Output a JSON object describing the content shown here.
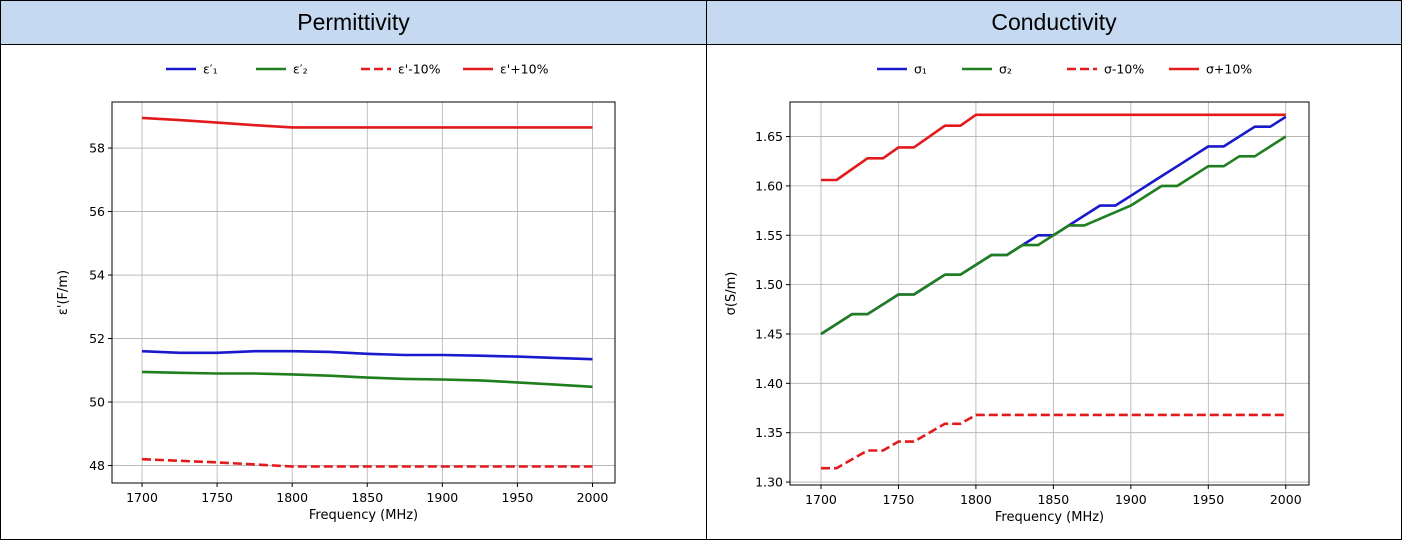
{
  "headers": {
    "left": "Permittivity",
    "right": "Conductivity"
  },
  "colors": {
    "blue": "#1a1acc",
    "green": "#1f7f1f",
    "red": "#e31a1c",
    "grid": "#b0b0b0",
    "header_bg": "#c5d9f1"
  },
  "chart_data": [
    {
      "type": "line",
      "xlabel": "Frequency (MHz)",
      "ylabel": "ε'(F/m)",
      "xlim": [
        1680,
        2015
      ],
      "ylim": [
        47.45,
        59.45
      ],
      "xticks": [
        1700,
        1750,
        1800,
        1850,
        1900,
        1950,
        2000
      ],
      "yticks": [
        48,
        50,
        52,
        54,
        56,
        58
      ],
      "ytick_labels": [
        "48",
        "50",
        "52",
        "54",
        "56",
        "58"
      ],
      "grid": true,
      "legend": "top-center, outside",
      "series": [
        {
          "name": "ε′₁",
          "color": "blue",
          "dashed": false,
          "x": [
            1700,
            1725,
            1750,
            1775,
            1800,
            1825,
            1850,
            1875,
            1900,
            1925,
            1950,
            1975,
            2000
          ],
          "y": [
            51.6,
            51.55,
            51.55,
            51.6,
            51.6,
            51.58,
            51.52,
            51.48,
            51.48,
            51.46,
            51.43,
            51.39,
            51.35
          ]
        },
        {
          "name": "ε′₂",
          "color": "green",
          "dashed": false,
          "x": [
            1700,
            1725,
            1750,
            1775,
            1800,
            1825,
            1850,
            1875,
            1900,
            1925,
            1950,
            1975,
            2000
          ],
          "y": [
            50.95,
            50.92,
            50.9,
            50.9,
            50.87,
            50.83,
            50.77,
            50.73,
            50.71,
            50.68,
            50.62,
            50.55,
            50.48
          ]
        },
        {
          "name": "ε'-10%",
          "color": "red",
          "dashed": true,
          "x": [
            1700,
            1750,
            1800,
            1850,
            1900,
            1950,
            2000
          ],
          "y": [
            48.2,
            48.1,
            47.97,
            47.97,
            47.97,
            47.97,
            47.97
          ]
        },
        {
          "name": "ε'+10%",
          "color": "red",
          "dashed": false,
          "x": [
            1700,
            1725,
            1750,
            1775,
            1800,
            1850,
            1900,
            1950,
            2000
          ],
          "y": [
            58.95,
            58.88,
            58.8,
            58.72,
            58.65,
            58.65,
            58.65,
            58.65,
            58.65
          ]
        }
      ]
    },
    {
      "type": "line",
      "xlabel": "Frequency (MHz)",
      "ylabel": "σ(S/m)",
      "xlim": [
        1680,
        2015
      ],
      "ylim": [
        1.297,
        1.685
      ],
      "xticks": [
        1700,
        1750,
        1800,
        1850,
        1900,
        1950,
        2000
      ],
      "yticks": [
        1.3,
        1.35,
        1.4,
        1.45,
        1.5,
        1.55,
        1.6,
        1.65
      ],
      "ytick_labels": [
        "1.30",
        "1.35",
        "1.40",
        "1.45",
        "1.50",
        "1.55",
        "1.60",
        "1.65"
      ],
      "grid": true,
      "legend": "top-center, outside",
      "series": [
        {
          "name": "σ₁",
          "color": "blue",
          "dashed": false,
          "x": [
            1700,
            1720,
            1730,
            1750,
            1760,
            1780,
            1790,
            1810,
            1820,
            1840,
            1850,
            1870,
            1880,
            1890,
            1900,
            1910,
            1920,
            1930,
            1940,
            1950,
            1960,
            1980,
            1990,
            2000
          ],
          "y": [
            1.45,
            1.47,
            1.47,
            1.49,
            1.49,
            1.51,
            1.51,
            1.53,
            1.53,
            1.55,
            1.55,
            1.57,
            1.58,
            1.58,
            1.59,
            1.6,
            1.61,
            1.62,
            1.63,
            1.64,
            1.64,
            1.66,
            1.66,
            1.67
          ]
        },
        {
          "name": "σ₂",
          "color": "green",
          "dashed": false,
          "x": [
            1700,
            1720,
            1730,
            1750,
            1760,
            1780,
            1790,
            1810,
            1820,
            1830,
            1840,
            1860,
            1870,
            1900,
            1920,
            1930,
            1950,
            1960,
            1970,
            1980,
            2000
          ],
          "y": [
            1.45,
            1.47,
            1.47,
            1.49,
            1.49,
            1.51,
            1.51,
            1.53,
            1.53,
            1.54,
            1.54,
            1.56,
            1.56,
            1.58,
            1.6,
            1.6,
            1.62,
            1.62,
            1.63,
            1.63,
            1.65
          ]
        },
        {
          "name": "σ-10%",
          "color": "red",
          "dashed": true,
          "x": [
            1700,
            1710,
            1730,
            1740,
            1750,
            1760,
            1780,
            1790,
            1800,
            1850,
            1900,
            1950,
            2000
          ],
          "y": [
            1.314,
            1.314,
            1.332,
            1.332,
            1.341,
            1.341,
            1.359,
            1.359,
            1.368,
            1.368,
            1.368,
            1.368,
            1.368
          ]
        },
        {
          "name": "σ+10%",
          "color": "red",
          "dashed": false,
          "x": [
            1700,
            1710,
            1730,
            1740,
            1750,
            1760,
            1780,
            1790,
            1800,
            1850,
            1900,
            1950,
            2000
          ],
          "y": [
            1.606,
            1.606,
            1.628,
            1.628,
            1.639,
            1.639,
            1.661,
            1.661,
            1.672,
            1.672,
            1.672,
            1.672,
            1.672
          ]
        }
      ]
    }
  ]
}
